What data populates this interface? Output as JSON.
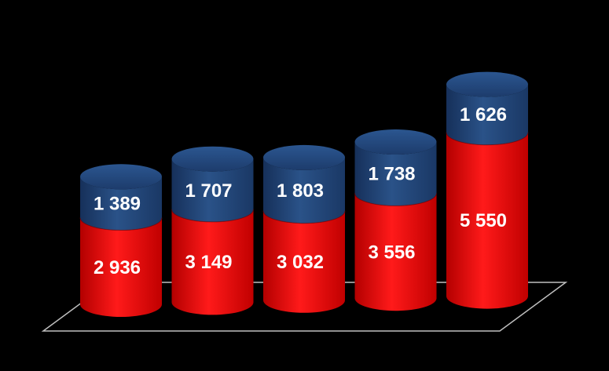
{
  "chart_data": {
    "type": "bar",
    "stacked": true,
    "style": "3d-cylinder",
    "categories": [
      "",
      "",
      "",
      "",
      ""
    ],
    "series": [
      {
        "values": [
          2936,
          3149,
          3032,
          3556,
          5550
        ],
        "color": "#ff0000",
        "labels": [
          "2 936",
          "3 149",
          "3 032",
          "3 556",
          "5 550"
        ]
      },
      {
        "values": [
          1389,
          1707,
          1803,
          1738,
          1626
        ],
        "color": "#1f3f73",
        "labels": [
          "1 389",
          "1 707",
          "1 803",
          "1 738",
          "1 626"
        ]
      }
    ],
    "title": "",
    "xlabel": "",
    "ylabel": "",
    "grid": false,
    "legend": "none",
    "background": "#000000"
  }
}
